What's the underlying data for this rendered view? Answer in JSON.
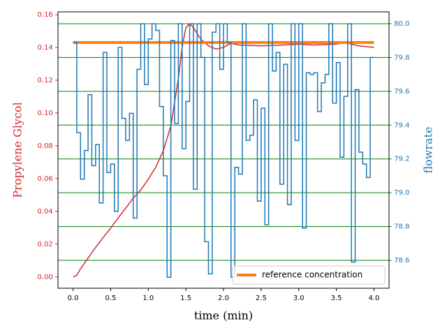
{
  "chart_data": {
    "type": "line",
    "xlabel": "time (min)",
    "ylabel": "Propylene Glycol",
    "y2label": "flowrate",
    "ylabel_color": "#d62728",
    "y2label_color": "#1f77b4",
    "grid_color": "green",
    "grid_axis": "y2",
    "legend": "lower right",
    "xlim": [
      -0.2,
      4.2
    ],
    "xticks": [
      {
        "value": 0,
        "label": "0.0"
      },
      {
        "value": 0.5,
        "label": "0.5"
      },
      {
        "value": 1,
        "label": "1.0"
      },
      {
        "value": 1.5,
        "label": "1.5"
      },
      {
        "value": 2,
        "label": "2.0"
      },
      {
        "value": 2.5,
        "label": "2.5"
      },
      {
        "value": 3,
        "label": "3.0"
      },
      {
        "value": 3.5,
        "label": "3.5"
      },
      {
        "value": 4,
        "label": "4.0"
      }
    ],
    "ylim": [
      -0.0069,
      0.1617
    ],
    "yticks": [
      {
        "value": 0,
        "label": "0.00"
      },
      {
        "value": 0.02,
        "label": "0.02"
      },
      {
        "value": 0.04,
        "label": "0.04"
      },
      {
        "value": 0.06,
        "label": "0.06"
      },
      {
        "value": 0.08,
        "label": "0.08"
      },
      {
        "value": 0.1,
        "label": "0.10"
      },
      {
        "value": 0.12,
        "label": "0.12"
      },
      {
        "value": 0.14,
        "label": "0.14"
      },
      {
        "value": 0.16,
        "label": "0.16"
      }
    ],
    "y2lim": [
      78.435,
      80.07
    ],
    "y2ticks": [
      78.6,
      78.8,
      79.2,
      79.4,
      79.6,
      79.8,
      {
        "value": 80,
        "label": "80.0"
      },
      {
        "value": 79,
        "label": "79.0"
      }
    ],
    "series": [
      {
        "color": "#d62728",
        "axis": "y",
        "x": [
          0,
          0.05,
          0.1,
          0.2,
          0.3,
          0.4,
          0.5,
          0.6,
          0.7,
          0.8,
          0.9,
          1.0,
          1.1,
          1.2,
          1.3,
          1.4,
          1.45,
          1.5,
          1.55,
          1.6,
          1.7,
          1.8,
          1.9,
          2.0,
          2.1,
          2.2,
          2.5,
          2.8,
          3.0,
          3.2,
          3.5,
          3.6,
          3.7,
          3.8,
          4.0
        ],
        "values": [
          0,
          0.001,
          0.005,
          0.0115,
          0.018,
          0.024,
          0.0298,
          0.036,
          0.042,
          0.048,
          0.053,
          0.0596,
          0.067,
          0.077,
          0.092,
          0.121,
          0.14,
          0.152,
          0.1545,
          0.152,
          0.145,
          0.141,
          0.139,
          0.14,
          0.1425,
          0.1415,
          0.141,
          0.1415,
          0.142,
          0.1415,
          0.142,
          0.143,
          0.142,
          0.141,
          0.14
        ]
      },
      {
        "name": "reference concentration",
        "color": "#ff7f0e",
        "axis": "y",
        "width": 4,
        "x": [
          0,
          4
        ],
        "values": [
          0.143,
          0.143
        ]
      },
      {
        "color": "#1f77b4",
        "axis": "y2",
        "step": "post",
        "x": [
          0,
          0.05,
          0.1,
          0.15,
          0.2,
          0.25,
          0.3,
          0.35,
          0.4,
          0.45,
          0.5,
          0.55,
          0.6,
          0.65,
          0.7,
          0.75,
          0.8,
          0.85,
          0.9,
          0.95,
          1.0,
          1.05,
          1.1,
          1.15,
          1.2,
          1.25,
          1.3,
          1.35,
          1.4,
          1.45,
          1.5,
          1.55,
          1.6,
          1.65,
          1.7,
          1.75,
          1.8,
          1.85,
          1.9,
          1.95,
          2.0,
          2.05,
          2.1,
          2.15,
          2.2,
          2.25,
          2.3,
          2.35,
          2.4,
          2.45,
          2.5,
          2.55,
          2.6,
          2.65,
          2.7,
          2.75,
          2.8,
          2.85,
          2.9,
          2.95,
          3.0,
          3.05,
          3.1,
          3.15,
          3.2,
          3.25,
          3.3,
          3.35,
          3.4,
          3.45,
          3.5,
          3.55,
          3.6,
          3.65,
          3.7,
          3.75,
          3.8,
          3.85,
          3.9,
          3.95,
          4.0
        ],
        "values": [
          79.89,
          79.355,
          79.08,
          79.25,
          79.58,
          79.16,
          79.285,
          78.94,
          79.83,
          79.12,
          79.17,
          78.89,
          79.86,
          79.44,
          79.31,
          79.47,
          78.85,
          79.73,
          80.0,
          79.64,
          79.91,
          80.0,
          79.96,
          79.51,
          79.1,
          78.5,
          79.9,
          79.41,
          80.0,
          79.26,
          79.54,
          80.0,
          79.02,
          80.0,
          79.8,
          78.71,
          78.52,
          79.95,
          80.0,
          79.73,
          80.0,
          79.89,
          78.5,
          79.15,
          79.11,
          80.0,
          79.31,
          79.34,
          79.55,
          78.95,
          79.5,
          78.81,
          80.0,
          79.72,
          79.83,
          79.05,
          79.76,
          78.93,
          80.0,
          79.31,
          80.0,
          78.79,
          79.71,
          79.7,
          79.71,
          79.48,
          79.65,
          79.7,
          80.0,
          79.53,
          79.77,
          79.21,
          79.57,
          80.0,
          78.59,
          79.61,
          79.24,
          79.17,
          79.09,
          79.8,
          79.8
        ]
      }
    ]
  }
}
